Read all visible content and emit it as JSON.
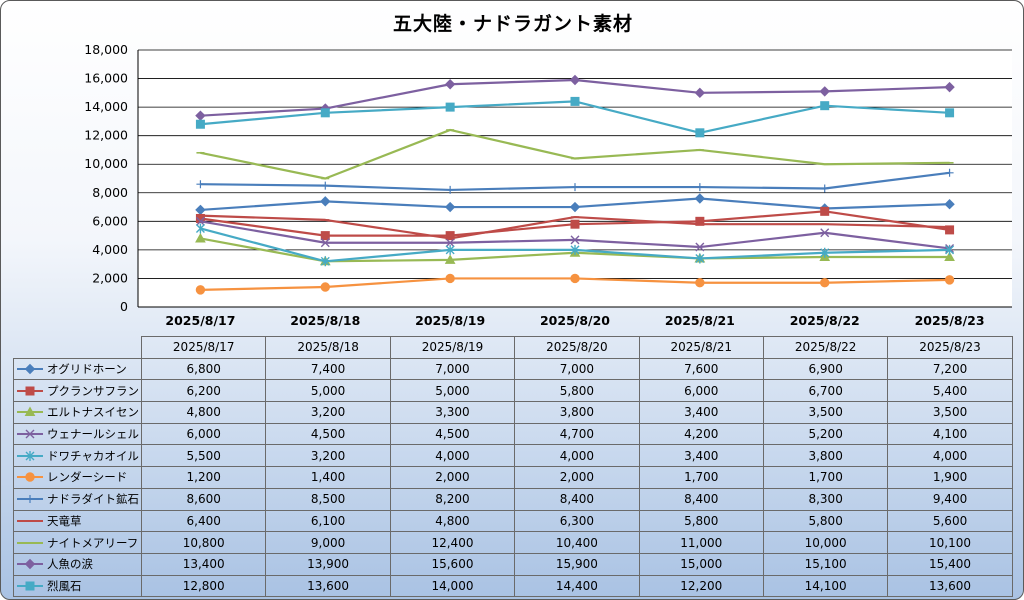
{
  "window": {
    "title": "五大陸・ナドラガント素材"
  },
  "chart_data": {
    "type": "line",
    "title": "五大陸・ナドラガント素材",
    "categories": [
      "2025/8/17",
      "2025/8/18",
      "2025/8/19",
      "2025/8/20",
      "2025/8/21",
      "2025/8/22",
      "2025/8/23"
    ],
    "ylim": [
      0,
      18000
    ],
    "yticks": [
      0,
      2000,
      4000,
      6000,
      8000,
      10000,
      12000,
      14000,
      16000,
      18000
    ],
    "ytick_labels": [
      "0",
      "2,000",
      "4,000",
      "6,000",
      "8,000",
      "10,000",
      "12,000",
      "14,000",
      "16,000",
      "18,000"
    ],
    "grid": true,
    "legend_placement": "data-table",
    "series": [
      {
        "name": "オグリドホーン",
        "color": "#4a7ebb",
        "marker": "diamond",
        "values": [
          6800,
          7400,
          7000,
          7000,
          7600,
          6900,
          7200
        ],
        "labels": [
          "6,800",
          "7,400",
          "7,000",
          "7,000",
          "7,600",
          "6,900",
          "7,200"
        ]
      },
      {
        "name": "プクランサフラン",
        "color": "#be4b48",
        "marker": "square",
        "values": [
          6200,
          5000,
          5000,
          5800,
          6000,
          6700,
          5400
        ],
        "labels": [
          "6,200",
          "5,000",
          "5,000",
          "5,800",
          "6,000",
          "6,700",
          "5,400"
        ]
      },
      {
        "name": "エルトナスイセン",
        "color": "#98b954",
        "marker": "triangle",
        "values": [
          4800,
          3200,
          3300,
          3800,
          3400,
          3500,
          3500
        ],
        "labels": [
          "4,800",
          "3,200",
          "3,300",
          "3,800",
          "3,400",
          "3,500",
          "3,500"
        ]
      },
      {
        "name": "ウェナールシェル",
        "color": "#7d60a0",
        "marker": "x",
        "values": [
          6000,
          4500,
          4500,
          4700,
          4200,
          5200,
          4100
        ],
        "labels": [
          "6,000",
          "4,500",
          "4,500",
          "4,700",
          "4,200",
          "5,200",
          "4,100"
        ]
      },
      {
        "name": "ドワチャカオイル",
        "color": "#46aac5",
        "marker": "star",
        "values": [
          5500,
          3200,
          4000,
          4000,
          3400,
          3800,
          4000
        ],
        "labels": [
          "5,500",
          "3,200",
          "4,000",
          "4,000",
          "3,400",
          "3,800",
          "4,000"
        ]
      },
      {
        "name": "レンダーシード",
        "color": "#f69240",
        "marker": "circle",
        "values": [
          1200,
          1400,
          2000,
          2000,
          1700,
          1700,
          1900
        ],
        "labels": [
          "1,200",
          "1,400",
          "2,000",
          "2,000",
          "1,700",
          "1,700",
          "1,900"
        ]
      },
      {
        "name": "ナドラダイト鉱石",
        "color": "#4a7ebb",
        "marker": "plus",
        "values": [
          8600,
          8500,
          8200,
          8400,
          8400,
          8300,
          9400
        ],
        "labels": [
          "8,600",
          "8,500",
          "8,200",
          "8,400",
          "8,400",
          "8,300",
          "9,400"
        ]
      },
      {
        "name": "天竜草",
        "color": "#be4b48",
        "marker": "dash",
        "values": [
          6400,
          6100,
          4800,
          6300,
          5800,
          5800,
          5600
        ],
        "labels": [
          "6,400",
          "6,100",
          "4,800",
          "6,300",
          "5,800",
          "5,800",
          "5,600"
        ]
      },
      {
        "name": "ナイトメアリーフ",
        "color": "#98b954",
        "marker": "dash",
        "values": [
          10800,
          9000,
          12400,
          10400,
          11000,
          10000,
          10100
        ],
        "labels": [
          "10,800",
          "9,000",
          "12,400",
          "10,400",
          "11,000",
          "10,000",
          "10,100"
        ]
      },
      {
        "name": "人魚の涙",
        "color": "#7d60a0",
        "marker": "diamond",
        "values": [
          13400,
          13900,
          15600,
          15900,
          15000,
          15100,
          15400
        ],
        "labels": [
          "13,400",
          "13,900",
          "15,600",
          "15,900",
          "15,000",
          "15,100",
          "15,400"
        ]
      },
      {
        "name": "烈風石",
        "color": "#46aac5",
        "marker": "square",
        "values": [
          12800,
          13600,
          14000,
          14400,
          12200,
          14100,
          13600
        ],
        "labels": [
          "12,800",
          "13,600",
          "14,000",
          "14,400",
          "12,200",
          "14,100",
          "13,600"
        ]
      }
    ]
  }
}
